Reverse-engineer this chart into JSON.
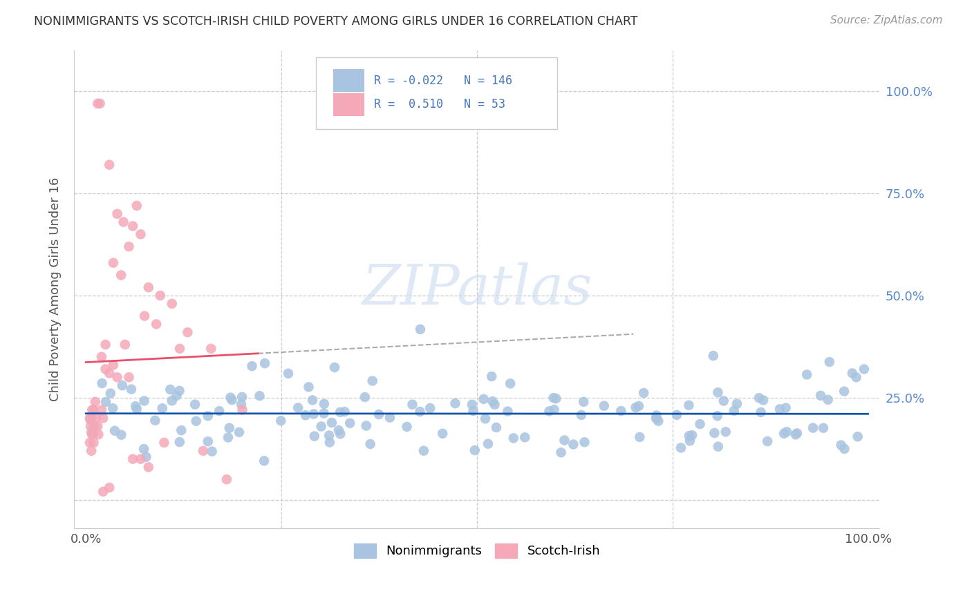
{
  "title": "NONIMMIGRANTS VS SCOTCH-IRISH CHILD POVERTY AMONG GIRLS UNDER 16 CORRELATION CHART",
  "source": "Source: ZipAtlas.com",
  "ylabel": "Child Poverty Among Girls Under 16",
  "xlim": [
    0,
    1
  ],
  "ylim": [
    0,
    1
  ],
  "blue_R": -0.022,
  "blue_N": 146,
  "pink_R": 0.51,
  "pink_N": 53,
  "blue_color": "#A8C4E0",
  "pink_color": "#F4A8B8",
  "blue_line_color": "#1155AA",
  "pink_line_color": "#E8506A",
  "legend_label_blue": "Nonimmigrants",
  "legend_label_pink": "Scotch-Irish",
  "blue_seed": 42,
  "pink_seed": 99
}
